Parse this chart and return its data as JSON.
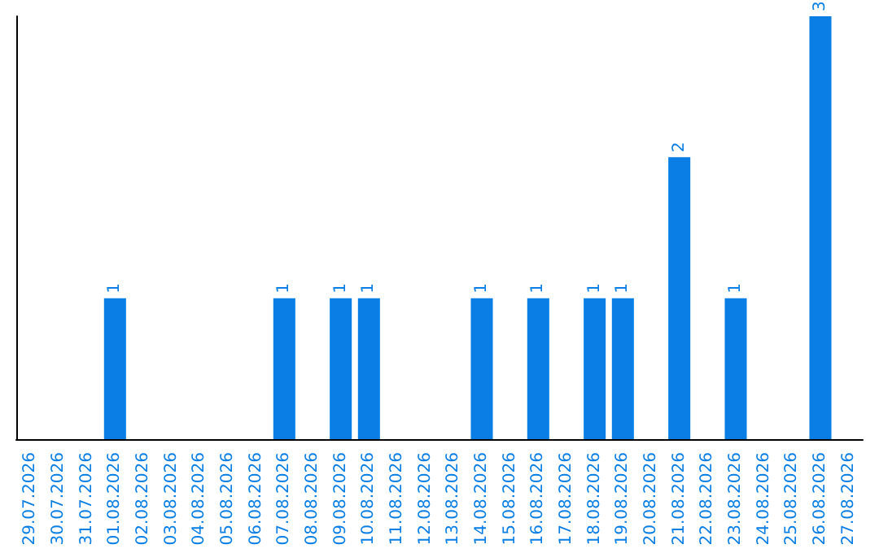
{
  "chart_data": {
    "type": "bar",
    "categories": [
      "29.07.2026",
      "30.07.2026",
      "31.07.2026",
      "01.08.2026",
      "02.08.2026",
      "03.08.2026",
      "04.08.2026",
      "05.08.2026",
      "06.08.2026",
      "07.08.2026",
      "08.08.2026",
      "09.08.2026",
      "10.08.2026",
      "11.08.2026",
      "12.08.2026",
      "13.08.2026",
      "14.08.2026",
      "15.08.2026",
      "16.08.2026",
      "17.08.2026",
      "18.08.2026",
      "19.08.2026",
      "20.08.2026",
      "21.08.2026",
      "22.08.2026",
      "23.08.2026",
      "24.08.2026",
      "25.08.2026",
      "26.08.2026",
      "27.08.2026"
    ],
    "values": [
      0,
      0,
      0,
      1,
      0,
      0,
      0,
      0,
      0,
      1,
      0,
      1,
      1,
      0,
      0,
      0,
      1,
      0,
      1,
      0,
      1,
      1,
      0,
      2,
      0,
      1,
      0,
      0,
      3,
      0
    ],
    "color": "#0a7ee4",
    "value_labels": [
      null,
      null,
      null,
      "1",
      null,
      null,
      null,
      null,
      null,
      "1",
      null,
      "1",
      "1",
      null,
      null,
      null,
      "1",
      null,
      "1",
      null,
      "1",
      "1",
      null,
      "2",
      null,
      "1",
      null,
      null,
      "3",
      null
    ],
    "tick_labels": "x",
    "grid": false
  }
}
